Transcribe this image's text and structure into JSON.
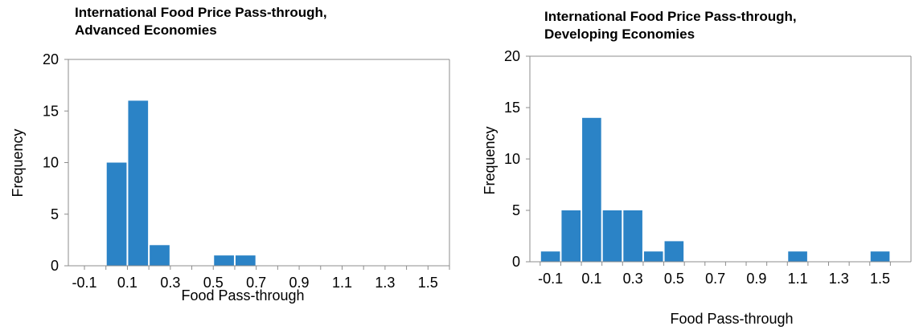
{
  "chart_data": [
    {
      "type": "bar",
      "title_lines": [
        "International Food Price Pass-through,",
        "Advanced Economies"
      ],
      "xlabel": "Food Pass-through",
      "ylabel": "Frequency",
      "ylim": [
        0,
        20
      ],
      "yticks": [
        "0",
        "5",
        "10",
        "15",
        "20"
      ],
      "xtick_labels": [
        "-0.1",
        "0.1",
        "0.3",
        "0.5",
        "0.7",
        "0.9",
        "1.1",
        "1.3",
        "1.5"
      ],
      "bin_start": -0.1,
      "bin_width": 0.1,
      "values": [
        0,
        10,
        16,
        2,
        0,
        0,
        1,
        1,
        0,
        0,
        0,
        0,
        0,
        0,
        0,
        0,
        0
      ],
      "bar_color": "#2B83C6",
      "grid": false
    },
    {
      "type": "bar",
      "title_lines": [
        "International Food Price Pass-through,",
        "Developing Economies"
      ],
      "xlabel": "Food Pass-through",
      "ylabel": "Frequency",
      "ylim": [
        0,
        20
      ],
      "yticks": [
        "0",
        "5",
        "10",
        "15",
        "20"
      ],
      "xtick_labels": [
        "-0.1",
        "0.1",
        "0.3",
        "0.5",
        "0.7",
        "0.9",
        "1.1",
        "1.3",
        "1.5"
      ],
      "bin_start": -0.15,
      "bin_width": 0.1,
      "values": [
        1,
        5,
        14,
        5,
        5,
        1,
        2,
        0,
        0,
        0,
        0,
        0,
        1,
        0,
        0,
        0,
        1
      ],
      "bar_color": "#2B83C6",
      "grid": false
    }
  ]
}
